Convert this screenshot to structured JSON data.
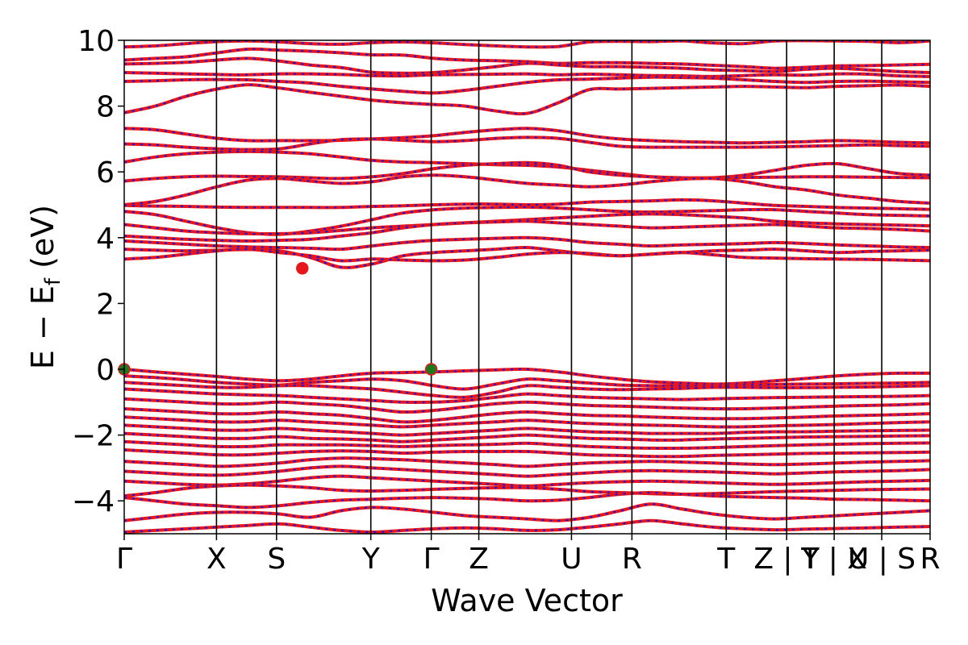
{
  "chart_data": {
    "type": "line",
    "title": "",
    "xlabel": "Wave Vector",
    "ylabel": "E − E_f (eV)",
    "ylabel_parts": {
      "main": "E − E",
      "sub": "f",
      "tail": " (eV)"
    },
    "ylim": [
      -5,
      10
    ],
    "yticks": [
      -4,
      -2,
      0,
      2,
      4,
      6,
      8,
      10
    ],
    "ytick_labels": [
      "−4",
      "−2",
      "0",
      "2",
      "4",
      "6",
      "8",
      "10"
    ],
    "grid": false,
    "colors": {
      "band": "#e8161b",
      "band_dash": "#1a17e6",
      "vbm": "#1c7a1c",
      "cbm": "#e8161b",
      "frame": "#000000"
    },
    "kpath": [
      {
        "label": "Γ",
        "x": 0.0
      },
      {
        "label": "X",
        "x": 0.1145
      },
      {
        "label": "S",
        "x": 0.189
      },
      {
        "label": "Y",
        "x": 0.306
      },
      {
        "label": "Γ",
        "x": 0.381
      },
      {
        "label": "Z",
        "x": 0.44
      },
      {
        "label": "U",
        "x": 0.555
      },
      {
        "label": "R",
        "x": 0.63
      },
      {
        "label": "T",
        "x": 0.747
      },
      {
        "label": "Z | Y",
        "x": 0.822
      },
      {
        "label": "T | X",
        "x": 0.881
      },
      {
        "label": "U | S",
        "x": 0.94
      },
      {
        "label": "R",
        "x": 1.0
      }
    ],
    "special_points": [
      {
        "kind": "VBM",
        "x": 0.0,
        "y": 0.0
      },
      {
        "kind": "VBM",
        "x": 0.381,
        "y": 0.0
      },
      {
        "kind": "CBM",
        "x": 0.221,
        "y": 3.07
      }
    ],
    "bands": [
      [
        9.8,
        9.83,
        9.9,
        9.96,
        9.98,
        9.95,
        9.9,
        9.88,
        9.93,
        9.95,
        9.92,
        9.87,
        9.83,
        9.8,
        9.81,
        9.95,
        9.97,
        9.96,
        9.98,
        9.92,
        9.9,
        9.98,
        9.99,
        9.98,
        9.97,
        9.93,
        9.98
      ],
      [
        9.4,
        9.45,
        9.5,
        9.62,
        9.73,
        9.7,
        9.67,
        9.62,
        9.56,
        9.55,
        9.45,
        9.4,
        9.38,
        9.35,
        9.3,
        9.32,
        9.32,
        9.3,
        9.28,
        9.24,
        9.2,
        9.15,
        9.18,
        9.22,
        9.23,
        9.25,
        9.27
      ],
      [
        9.28,
        9.3,
        9.33,
        9.4,
        9.45,
        9.37,
        9.25,
        9.17,
        9.03,
        9.0,
        9.02,
        9.1,
        9.2,
        9.3,
        9.25,
        9.2,
        9.2,
        9.18,
        9.15,
        9.1,
        9.08,
        9.05,
        9.12,
        9.15,
        9.1,
        9.05,
        9.02
      ],
      [
        9.02,
        9.0,
        8.98,
        8.96,
        8.95,
        8.98,
        8.98,
        8.96,
        8.93,
        8.92,
        8.95,
        8.96,
        8.97,
        8.98,
        8.95,
        8.97,
        8.95,
        8.93,
        8.92,
        8.9,
        8.93,
        8.95,
        8.94,
        8.98,
        8.97,
        8.92,
        8.9
      ],
      [
        8.75,
        8.77,
        8.8,
        8.81,
        8.8,
        8.75,
        8.7,
        8.6,
        8.52,
        8.45,
        8.4,
        8.48,
        8.6,
        8.72,
        8.8,
        8.82,
        8.85,
        8.88,
        8.87,
        8.85,
        8.8,
        8.75,
        8.72,
        8.75,
        8.76,
        8.74,
        8.72
      ],
      [
        7.8,
        8.0,
        8.3,
        8.52,
        8.65,
        8.55,
        8.42,
        8.3,
        8.18,
        8.1,
        8.05,
        8.0,
        7.85,
        7.78,
        8.1,
        8.5,
        8.52,
        8.54,
        8.56,
        8.58,
        8.6,
        8.58,
        8.56,
        8.6,
        8.62,
        8.64,
        8.6
      ],
      [
        7.32,
        7.28,
        7.15,
        7.02,
        6.95,
        6.95,
        6.95,
        6.96,
        7.0,
        7.04,
        7.1,
        7.2,
        7.28,
        7.32,
        7.25,
        7.1,
        7.0,
        6.95,
        6.92,
        6.9,
        6.88,
        6.9,
        6.92,
        6.95,
        6.93,
        6.9,
        6.88
      ],
      [
        6.85,
        6.82,
        6.75,
        6.7,
        6.68,
        6.7,
        6.85,
        6.98,
        7.0,
        6.96,
        6.92,
        6.95,
        7.02,
        7.05,
        7.02,
        6.9,
        6.78,
        6.75,
        6.75,
        6.75,
        6.75,
        6.76,
        6.78,
        6.8,
        6.82,
        6.8,
        6.78
      ],
      [
        6.3,
        6.45,
        6.55,
        6.6,
        6.62,
        6.6,
        6.55,
        6.45,
        6.35,
        6.3,
        6.28,
        6.25,
        6.22,
        6.2,
        6.15,
        6.05,
        5.95,
        5.85,
        5.8,
        5.82,
        5.9,
        6.05,
        6.2,
        6.25,
        6.1,
        5.95,
        5.9
      ],
      [
        5.72,
        5.8,
        5.85,
        5.87,
        5.86,
        5.85,
        5.82,
        5.8,
        5.85,
        5.95,
        6.1,
        6.2,
        6.25,
        6.28,
        6.2,
        6.0,
        5.9,
        5.85,
        5.82,
        5.82,
        5.83,
        5.84,
        5.85,
        5.85,
        5.84,
        5.83,
        5.82
      ],
      [
        5.0,
        5.1,
        5.3,
        5.55,
        5.75,
        5.8,
        5.72,
        5.65,
        5.7,
        5.85,
        5.9,
        5.85,
        5.75,
        5.65,
        5.6,
        5.55,
        5.6,
        5.7,
        5.78,
        5.8,
        5.7,
        5.55,
        5.45,
        5.3,
        5.2,
        5.1,
        5.05
      ],
      [
        4.98,
        4.96,
        4.95,
        4.93,
        4.92,
        4.92,
        4.92,
        4.92,
        4.95,
        4.97,
        5.0,
        5.02,
        5.02,
        5.0,
        5.02,
        5.08,
        5.1,
        5.12,
        5.15,
        5.12,
        5.05,
        4.98,
        4.95,
        4.92,
        4.9,
        4.88,
        4.86
      ],
      [
        4.8,
        4.7,
        4.5,
        4.3,
        4.15,
        4.1,
        4.2,
        4.35,
        4.55,
        4.75,
        4.85,
        4.9,
        4.92,
        4.93,
        4.9,
        4.85,
        4.8,
        4.78,
        4.8,
        4.82,
        4.85,
        4.85,
        4.8,
        4.75,
        4.7,
        4.68,
        4.66
      ],
      [
        4.4,
        4.3,
        4.2,
        4.15,
        4.12,
        4.12,
        4.15,
        4.22,
        4.3,
        4.35,
        4.4,
        4.45,
        4.5,
        4.55,
        4.6,
        4.65,
        4.7,
        4.72,
        4.7,
        4.65,
        4.6,
        4.5,
        4.45,
        4.42,
        4.4,
        4.38,
        4.36
      ],
      [
        4.05,
        4.0,
        3.95,
        3.92,
        3.9,
        3.92,
        3.95,
        4.05,
        4.15,
        4.3,
        4.4,
        4.45,
        4.48,
        4.5,
        4.45,
        4.4,
        4.35,
        4.3,
        4.32,
        4.35,
        4.38,
        4.4,
        4.35,
        4.3,
        4.28,
        4.25,
        4.2
      ],
      [
        3.9,
        3.85,
        3.8,
        3.75,
        3.72,
        3.7,
        3.68,
        3.65,
        3.75,
        3.85,
        3.92,
        3.95,
        3.98,
        4.0,
        3.95,
        3.85,
        3.8,
        3.75,
        3.78,
        3.8,
        3.82,
        3.85,
        3.82,
        3.78,
        3.75,
        3.72,
        3.7
      ],
      [
        3.65,
        3.62,
        3.6,
        3.62,
        3.64,
        3.6,
        3.4,
        3.1,
        3.2,
        3.45,
        3.55,
        3.6,
        3.65,
        3.7,
        3.6,
        3.5,
        3.45,
        3.5,
        3.55,
        3.6,
        3.62,
        3.65,
        3.6,
        3.55,
        3.58,
        3.6,
        3.62
      ],
      [
        3.35,
        3.4,
        3.5,
        3.6,
        3.65,
        3.55,
        3.45,
        3.3,
        3.35,
        3.32,
        3.3,
        3.32,
        3.4,
        3.5,
        3.55,
        3.52,
        3.45,
        3.5,
        3.55,
        3.48,
        3.4,
        3.38,
        3.36,
        3.35,
        3.34,
        3.32,
        3.3
      ],
      [
        0.0,
        -0.08,
        -0.15,
        -0.22,
        -0.3,
        -0.35,
        -0.3,
        -0.2,
        -0.12,
        -0.1,
        -0.08,
        -0.05,
        -0.02,
        0.0,
        -0.08,
        -0.2,
        -0.3,
        -0.38,
        -0.42,
        -0.45,
        -0.42,
        -0.35,
        -0.28,
        -0.2,
        -0.15,
        -0.12,
        -0.12
      ],
      [
        -0.2,
        -0.25,
        -0.32,
        -0.4,
        -0.45,
        -0.48,
        -0.4,
        -0.35,
        -0.3,
        -0.35,
        -0.5,
        -0.6,
        -0.45,
        -0.3,
        -0.35,
        -0.42,
        -0.48,
        -0.5,
        -0.5,
        -0.5,
        -0.48,
        -0.46,
        -0.45,
        -0.44,
        -0.43,
        -0.42,
        -0.4
      ],
      [
        -0.4,
        -0.45,
        -0.5,
        -0.55,
        -0.55,
        -0.5,
        -0.5,
        -0.55,
        -0.6,
        -0.7,
        -0.8,
        -0.85,
        -0.7,
        -0.5,
        -0.55,
        -0.6,
        -0.62,
        -0.6,
        -0.58,
        -0.55,
        -0.55,
        -0.56,
        -0.56,
        -0.55,
        -0.54,
        -0.52,
        -0.5
      ],
      [
        -0.6,
        -0.65,
        -0.7,
        -0.75,
        -0.78,
        -0.8,
        -0.85,
        -0.9,
        -0.95,
        -1.0,
        -1.0,
        -0.95,
        -0.85,
        -0.75,
        -0.8,
        -0.85,
        -0.88,
        -0.9,
        -0.92,
        -0.9,
        -0.88,
        -0.86,
        -0.85,
        -0.84,
        -0.83,
        -0.82,
        -0.8
      ],
      [
        -0.9,
        -0.95,
        -1.0,
        -1.05,
        -1.05,
        -1.0,
        -1.05,
        -1.1,
        -1.2,
        -1.3,
        -1.25,
        -1.15,
        -1.05,
        -1.0,
        -1.05,
        -1.1,
        -1.12,
        -1.15,
        -1.18,
        -1.2,
        -1.2,
        -1.18,
        -1.15,
        -1.12,
        -1.1,
        -1.08,
        -1.05
      ],
      [
        -1.2,
        -1.25,
        -1.3,
        -1.35,
        -1.35,
        -1.3,
        -1.35,
        -1.4,
        -1.5,
        -1.6,
        -1.55,
        -1.45,
        -1.35,
        -1.3,
        -1.35,
        -1.4,
        -1.42,
        -1.45,
        -1.48,
        -1.5,
        -1.5,
        -1.48,
        -1.45,
        -1.42,
        -1.4,
        -1.38,
        -1.35
      ],
      [
        -1.45,
        -1.5,
        -1.55,
        -1.6,
        -1.6,
        -1.55,
        -1.6,
        -1.65,
        -1.7,
        -1.75,
        -1.7,
        -1.65,
        -1.6,
        -1.55,
        -1.6,
        -1.65,
        -1.68,
        -1.7,
        -1.72,
        -1.75,
        -1.75,
        -1.72,
        -1.7,
        -1.68,
        -1.65,
        -1.62,
        -1.6
      ],
      [
        -1.7,
        -1.75,
        -1.8,
        -1.85,
        -1.85,
        -1.8,
        -1.85,
        -1.9,
        -1.95,
        -2.0,
        -1.95,
        -1.9,
        -1.85,
        -1.8,
        -1.85,
        -1.9,
        -1.92,
        -1.95,
        -1.95,
        -1.95,
        -1.92,
        -1.9,
        -1.9,
        -1.88,
        -1.87,
        -1.86,
        -1.85
      ],
      [
        -1.95,
        -2.0,
        -2.05,
        -2.1,
        -2.1,
        -2.05,
        -2.1,
        -2.12,
        -2.15,
        -2.2,
        -2.15,
        -2.1,
        -2.05,
        -2.0,
        -2.05,
        -2.1,
        -2.12,
        -2.15,
        -2.15,
        -2.12,
        -2.1,
        -2.08,
        -2.06,
        -2.05,
        -2.04,
        -2.03,
        -2.02
      ],
      [
        -2.2,
        -2.25,
        -2.3,
        -2.35,
        -2.35,
        -2.3,
        -2.3,
        -2.3,
        -2.32,
        -2.35,
        -2.32,
        -2.3,
        -2.28,
        -2.25,
        -2.3,
        -2.35,
        -2.38,
        -2.4,
        -2.4,
        -2.38,
        -2.35,
        -2.32,
        -2.3,
        -2.28,
        -2.26,
        -2.25,
        -2.24
      ],
      [
        -2.45,
        -2.5,
        -2.55,
        -2.6,
        -2.6,
        -2.55,
        -2.5,
        -2.48,
        -2.5,
        -2.55,
        -2.52,
        -2.5,
        -2.5,
        -2.5,
        -2.55,
        -2.6,
        -2.62,
        -2.65,
        -2.65,
        -2.62,
        -2.6,
        -2.58,
        -2.56,
        -2.55,
        -2.54,
        -2.53,
        -2.52
      ],
      [
        -2.8,
        -2.85,
        -2.9,
        -2.95,
        -2.92,
        -2.85,
        -2.75,
        -2.7,
        -2.72,
        -2.75,
        -2.8,
        -2.85,
        -2.9,
        -2.95,
        -2.9,
        -2.85,
        -2.82,
        -2.8,
        -2.82,
        -2.85,
        -2.88,
        -2.9,
        -2.88,
        -2.85,
        -2.82,
        -2.8,
        -2.78
      ],
      [
        -3.1,
        -3.15,
        -3.2,
        -3.22,
        -3.18,
        -3.1,
        -3.0,
        -2.95,
        -3.0,
        -3.05,
        -3.1,
        -3.15,
        -3.2,
        -3.25,
        -3.2,
        -3.15,
        -3.1,
        -3.08,
        -3.1,
        -3.12,
        -3.15,
        -3.18,
        -3.15,
        -3.12,
        -3.1,
        -3.08,
        -3.05
      ],
      [
        -3.4,
        -3.45,
        -3.5,
        -3.52,
        -3.48,
        -3.4,
        -3.3,
        -3.25,
        -3.3,
        -3.35,
        -3.4,
        -3.45,
        -3.5,
        -3.55,
        -3.5,
        -3.45,
        -3.42,
        -3.4,
        -3.42,
        -3.45,
        -3.48,
        -3.5,
        -3.48,
        -3.45,
        -3.42,
        -3.4,
        -3.38
      ],
      [
        -3.85,
        -3.75,
        -3.62,
        -3.55,
        -3.52,
        -3.55,
        -3.6,
        -3.68,
        -3.7,
        -3.68,
        -3.65,
        -3.62,
        -3.6,
        -3.6,
        -3.65,
        -3.72,
        -3.75,
        -3.78,
        -3.8,
        -3.78,
        -3.75,
        -3.72,
        -3.7,
        -3.68,
        -3.66,
        -3.65,
        -3.64
      ],
      [
        -3.9,
        -4.0,
        -4.1,
        -4.15,
        -4.2,
        -4.15,
        -4.05,
        -3.98,
        -3.95,
        -3.92,
        -3.9,
        -3.92,
        -3.95,
        -4.0,
        -3.98,
        -3.9,
        -3.8,
        -3.75,
        -3.8,
        -3.85,
        -3.88,
        -3.9,
        -3.92,
        -3.95,
        -3.96,
        -3.98,
        -4.0
      ],
      [
        -4.6,
        -4.5,
        -4.4,
        -4.35,
        -4.35,
        -4.4,
        -4.5,
        -4.3,
        -4.2,
        -4.25,
        -4.35,
        -4.45,
        -4.5,
        -4.55,
        -4.6,
        -4.5,
        -4.3,
        -4.1,
        -4.25,
        -4.4,
        -4.5,
        -4.55,
        -4.5,
        -4.45,
        -4.4,
        -4.35,
        -4.3
      ],
      [
        -4.95,
        -4.9,
        -4.85,
        -4.8,
        -4.75,
        -4.7,
        -4.8,
        -4.9,
        -4.95,
        -4.9,
        -4.85,
        -4.82,
        -4.85,
        -4.9,
        -4.88,
        -4.8,
        -4.7,
        -4.6,
        -4.7,
        -4.8,
        -4.85,
        -4.88,
        -4.86,
        -4.84,
        -4.82,
        -4.8,
        -4.78
      ]
    ]
  }
}
